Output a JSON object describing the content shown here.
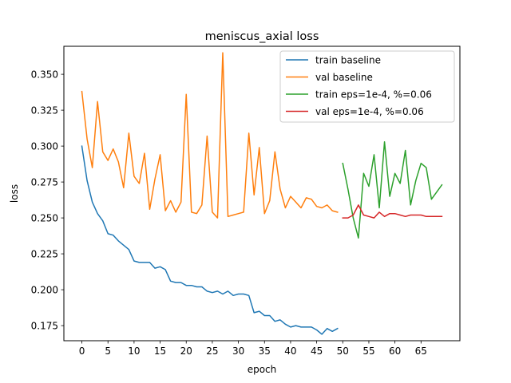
{
  "chart_data": {
    "type": "line",
    "title": "meniscus_axial loss",
    "xlabel": "epoch",
    "ylabel": "loss",
    "xlim": [
      -3.45,
      72.45
    ],
    "ylim": [
      0.1645,
      0.3695
    ],
    "xticks": [
      0,
      5,
      10,
      15,
      20,
      25,
      30,
      35,
      40,
      45,
      50,
      55,
      60,
      65
    ],
    "yticks": [
      0.175,
      0.2,
      0.225,
      0.25,
      0.275,
      0.3,
      0.325,
      0.35
    ],
    "grid": false,
    "legend_position": "top-right",
    "series": [
      {
        "name": "train baseline",
        "color": "#1f77b4",
        "x": [
          0,
          1,
          2,
          3,
          4,
          5,
          6,
          7,
          8,
          9,
          10,
          11,
          12,
          13,
          14,
          15,
          16,
          17,
          18,
          19,
          20,
          21,
          22,
          23,
          24,
          25,
          26,
          27,
          28,
          29,
          30,
          31,
          32,
          33,
          34,
          35,
          36,
          37,
          38,
          39,
          40,
          41,
          42,
          43,
          44,
          45,
          46,
          47,
          48,
          49
        ],
        "values": [
          0.3,
          0.276,
          0.261,
          0.253,
          0.248,
          0.239,
          0.238,
          0.234,
          0.231,
          0.228,
          0.22,
          0.219,
          0.219,
          0.219,
          0.215,
          0.216,
          0.214,
          0.206,
          0.205,
          0.205,
          0.203,
          0.203,
          0.202,
          0.202,
          0.199,
          0.198,
          0.199,
          0.197,
          0.199,
          0.196,
          0.197,
          0.197,
          0.196,
          0.184,
          0.185,
          0.182,
          0.182,
          0.178,
          0.179,
          0.176,
          0.174,
          0.175,
          0.174,
          0.174,
          0.174,
          0.172,
          0.169,
          0.173,
          0.171,
          0.173
        ]
      },
      {
        "name": "val baseline",
        "color": "#ff7f0e",
        "x": [
          0,
          1,
          2,
          3,
          4,
          5,
          6,
          7,
          8,
          9,
          10,
          11,
          12,
          13,
          14,
          15,
          16,
          17,
          18,
          19,
          20,
          21,
          22,
          23,
          24,
          25,
          26,
          27,
          28,
          29,
          30,
          31,
          32,
          33,
          34,
          35,
          36,
          37,
          38,
          39,
          40,
          41,
          42,
          43,
          44,
          45,
          46,
          47,
          48,
          49
        ],
        "values": [
          0.338,
          0.305,
          0.285,
          0.331,
          0.296,
          0.29,
          0.298,
          0.289,
          0.271,
          0.309,
          0.279,
          0.274,
          0.295,
          0.256,
          0.277,
          0.294,
          0.255,
          0.262,
          0.254,
          0.261,
          0.336,
          0.254,
          0.253,
          0.259,
          0.307,
          0.254,
          0.25,
          0.365,
          0.251,
          0.252,
          0.253,
          0.254,
          0.309,
          0.266,
          0.299,
          0.253,
          0.262,
          0.296,
          0.27,
          0.257,
          0.265,
          0.261,
          0.257,
          0.264,
          0.263,
          0.258,
          0.257,
          0.259,
          0.255,
          0.254
        ]
      },
      {
        "name": "train eps=1e-4, %=0.06",
        "color": "#2ca02c",
        "x": [
          50,
          51,
          52,
          53,
          54,
          55,
          56,
          57,
          58,
          59,
          60,
          61,
          62,
          63,
          64,
          65,
          66,
          67,
          68,
          69
        ],
        "values": [
          0.288,
          0.27,
          0.25,
          0.236,
          0.281,
          0.272,
          0.294,
          0.257,
          0.303,
          0.265,
          0.281,
          0.274,
          0.297,
          0.259,
          0.276,
          0.288,
          0.285,
          0.263,
          0.268,
          0.273
        ]
      },
      {
        "name": "val eps=1e-4, %=0.06",
        "color": "#d62728",
        "x": [
          50,
          51,
          52,
          53,
          54,
          55,
          56,
          57,
          58,
          59,
          60,
          61,
          62,
          63,
          64,
          65,
          66,
          67,
          68,
          69
        ],
        "values": [
          0.25,
          0.25,
          0.252,
          0.259,
          0.252,
          0.251,
          0.25,
          0.254,
          0.251,
          0.253,
          0.253,
          0.252,
          0.251,
          0.252,
          0.252,
          0.252,
          0.251,
          0.251,
          0.251,
          0.251
        ]
      }
    ]
  }
}
